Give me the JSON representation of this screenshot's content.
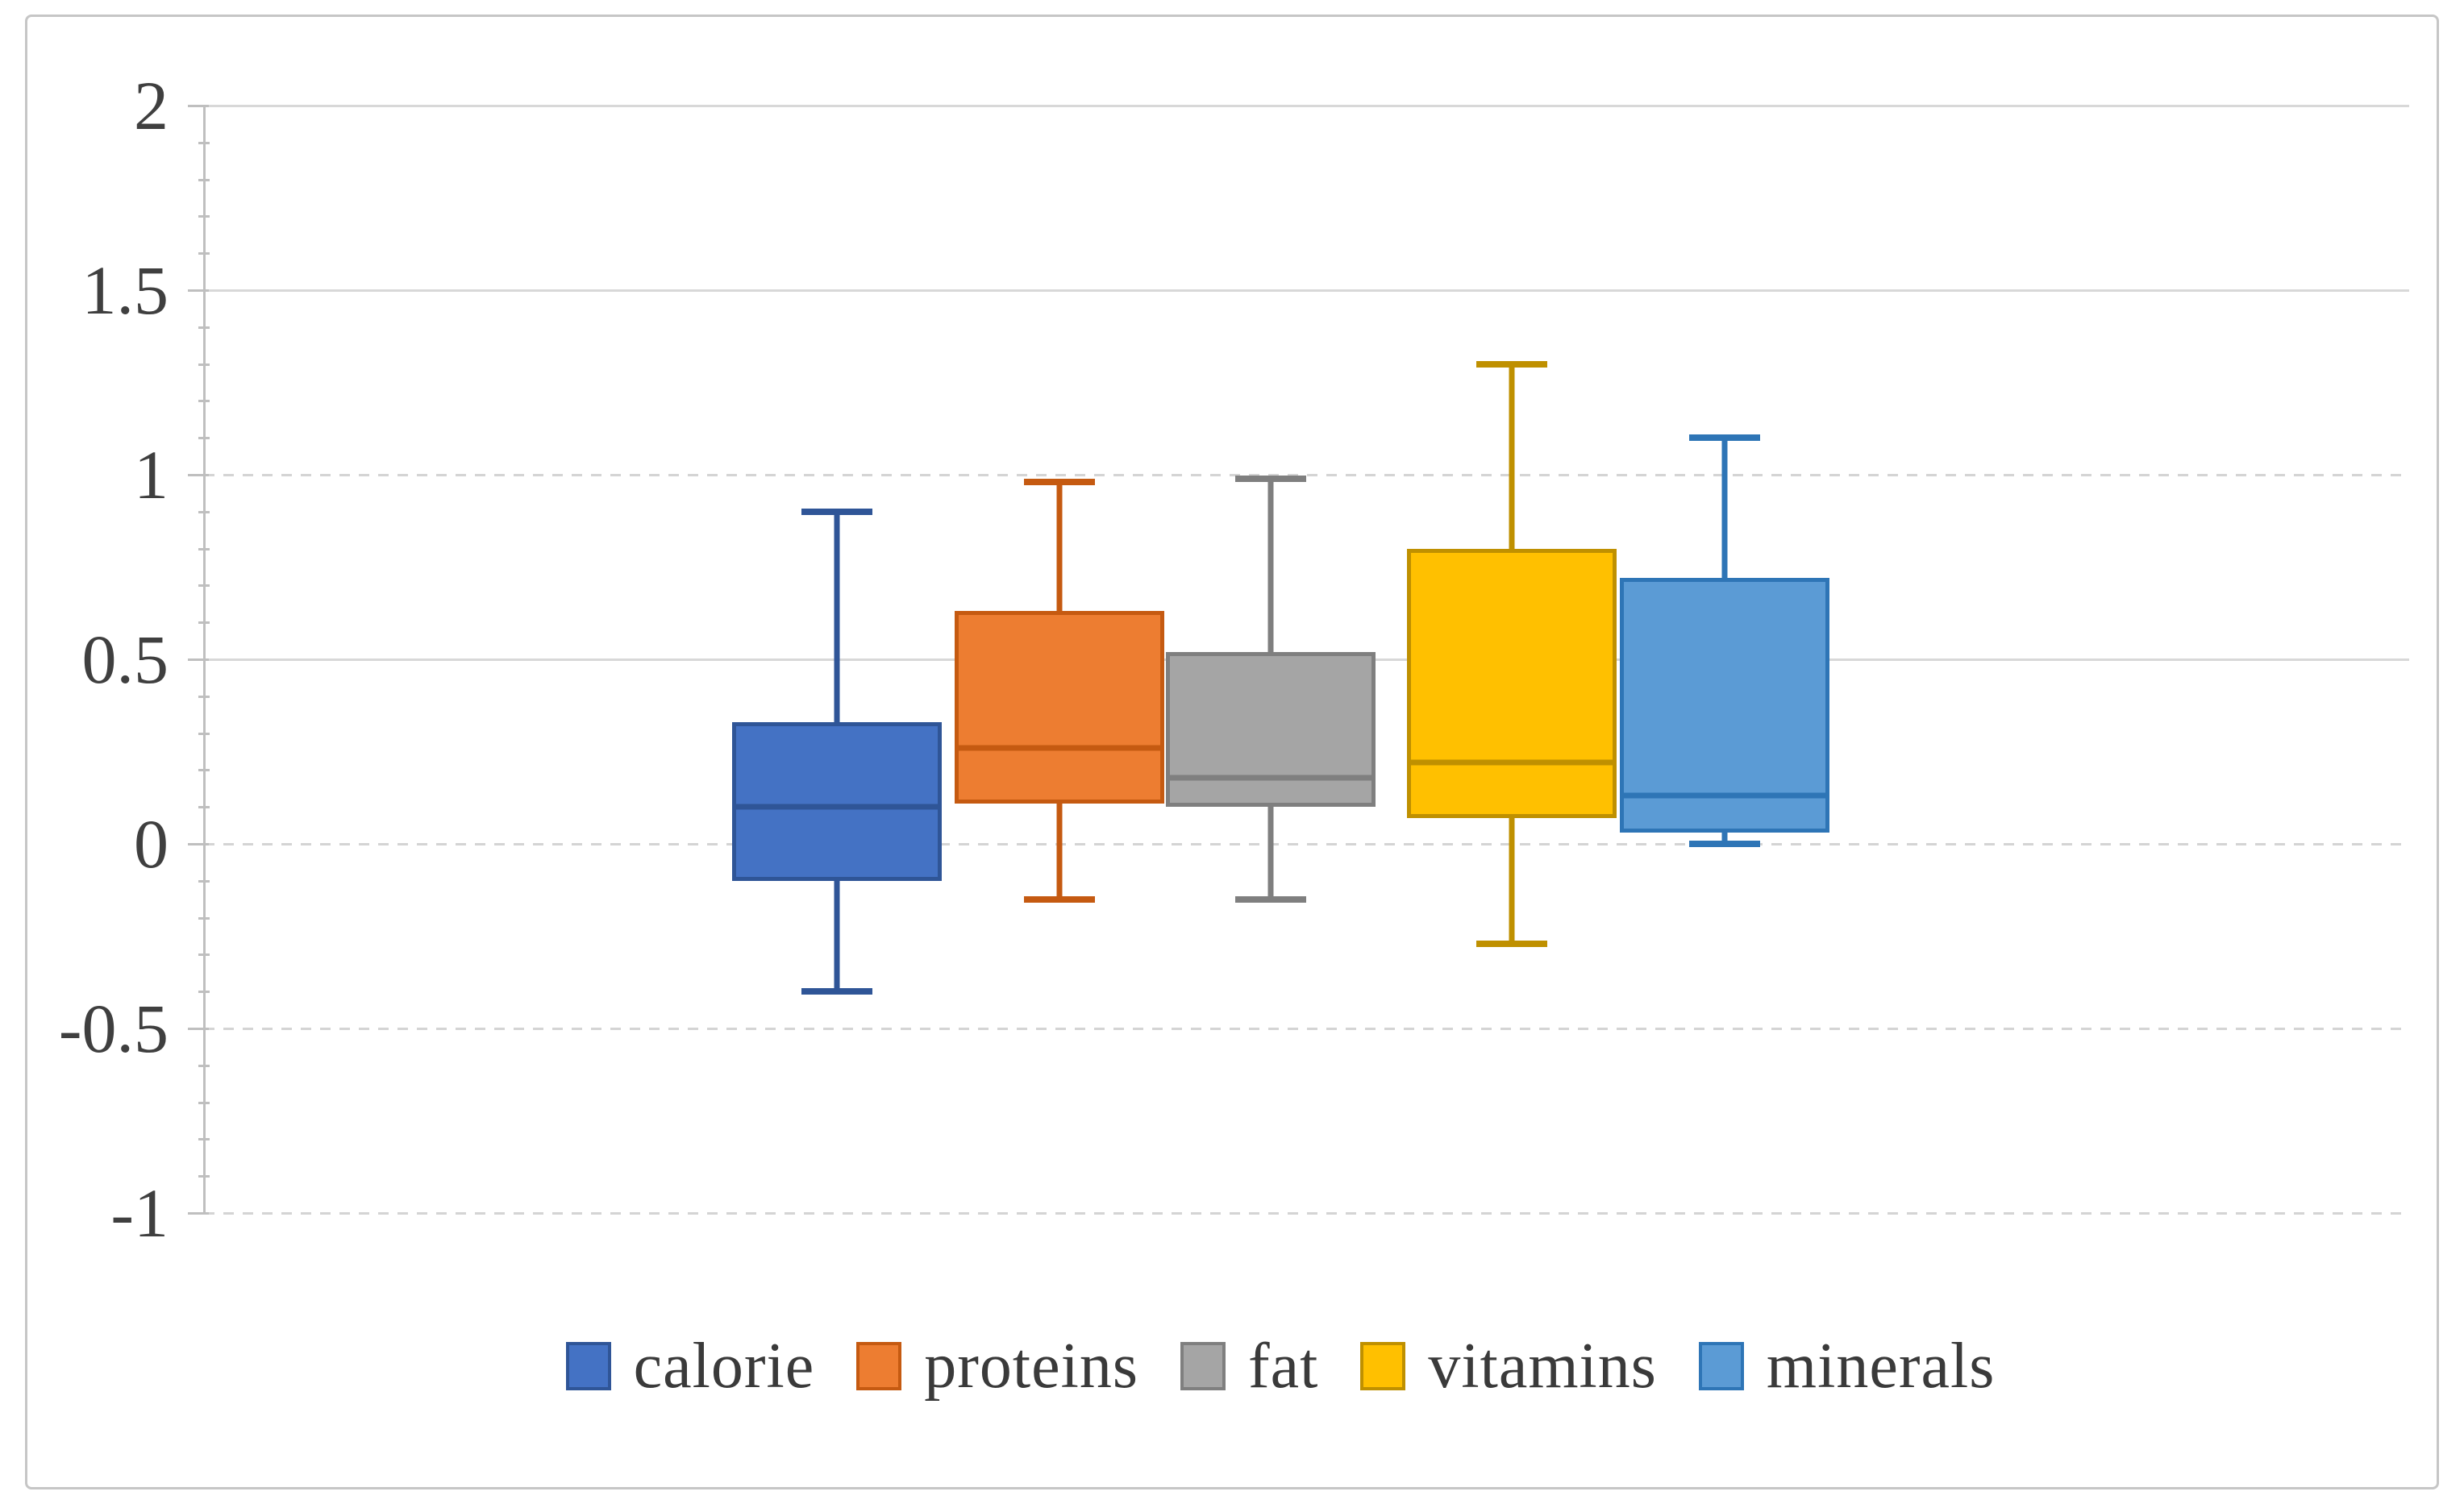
{
  "chart_data": {
    "type": "boxplot",
    "title": "",
    "xlabel": "",
    "ylabel": "",
    "series": [
      {
        "name": "calorie",
        "fill": "#4472C4",
        "line": "#2F5597",
        "min": -0.4,
        "q1": -0.1,
        "median": 0.1,
        "q3": 0.33,
        "max": 0.9
      },
      {
        "name": "proteins",
        "fill": "#ED7D31",
        "line": "#C55A11",
        "min": -0.15,
        "q1": 0.11,
        "median": 0.26,
        "q3": 0.63,
        "max": 0.98
      },
      {
        "name": "fat",
        "fill": "#A5A5A5",
        "line": "#7F7F7F",
        "min": -0.15,
        "q1": 0.1,
        "median": 0.18,
        "q3": 0.52,
        "max": 0.99
      },
      {
        "name": "vitamins",
        "fill": "#FFC000",
        "line": "#BF9000",
        "min": -0.27,
        "q1": 0.07,
        "median": 0.22,
        "q3": 0.8,
        "max": 1.3
      },
      {
        "name": "minerals",
        "fill": "#5B9BD5",
        "line": "#2E75B6",
        "min": 0.0,
        "q1": 0.03,
        "median": 0.13,
        "q3": 0.72,
        "max": 1.1
      }
    ],
    "y_axis": {
      "min": -1,
      "max": 2,
      "major_step": 0.5,
      "minor_step": 0.1,
      "ticks": [
        {
          "value": 2,
          "label": "2",
          "style": "solid"
        },
        {
          "value": 1.5,
          "label": "1.5",
          "style": "solid"
        },
        {
          "value": 1,
          "label": "1",
          "style": "dashed"
        },
        {
          "value": 0.5,
          "label": "0.5",
          "style": "solid"
        },
        {
          "value": 0,
          "label": "0",
          "style": "dashed"
        },
        {
          "value": -0.5,
          "label": "-0.5",
          "style": "dashed"
        },
        {
          "value": -1,
          "label": "-1",
          "style": "dashed"
        }
      ]
    },
    "legend": {
      "position": "bottom",
      "items": [
        "calorie",
        "proteins",
        "fat",
        "vitamins",
        "minerals"
      ]
    },
    "grid": true,
    "colors": {
      "gridline": "#D8D8D8",
      "axis": "#BFBFBF",
      "text": "#3F3F3F",
      "chart_border": "#C6C6C6",
      "background": "#FFFFFF"
    }
  }
}
